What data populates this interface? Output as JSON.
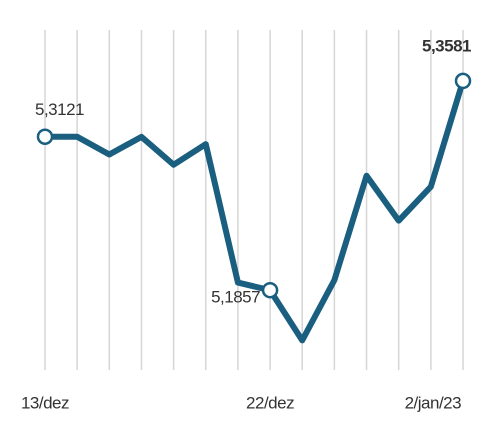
{
  "chart_data": {
    "type": "line",
    "categories": [
      "13/dez",
      null,
      null,
      null,
      null,
      null,
      null,
      "22/dez",
      null,
      null,
      null,
      null,
      "2/jan/23",
      null
    ],
    "series": [
      {
        "color": "#1b5f80",
        "values": [
          5.3121,
          5.3121,
          5.2975,
          5.312,
          5.289,
          5.306,
          5.192,
          5.1857,
          5.1444,
          5.194,
          5.28,
          5.243,
          5.271,
          5.3581
        ],
        "value_labels": [
          "5,3121",
          null,
          null,
          null,
          null,
          null,
          null,
          "5,1857",
          null,
          null,
          null,
          null,
          null,
          "5,3581"
        ]
      }
    ],
    "ylim": [
      5.12,
      5.4
    ],
    "grid": true
  }
}
